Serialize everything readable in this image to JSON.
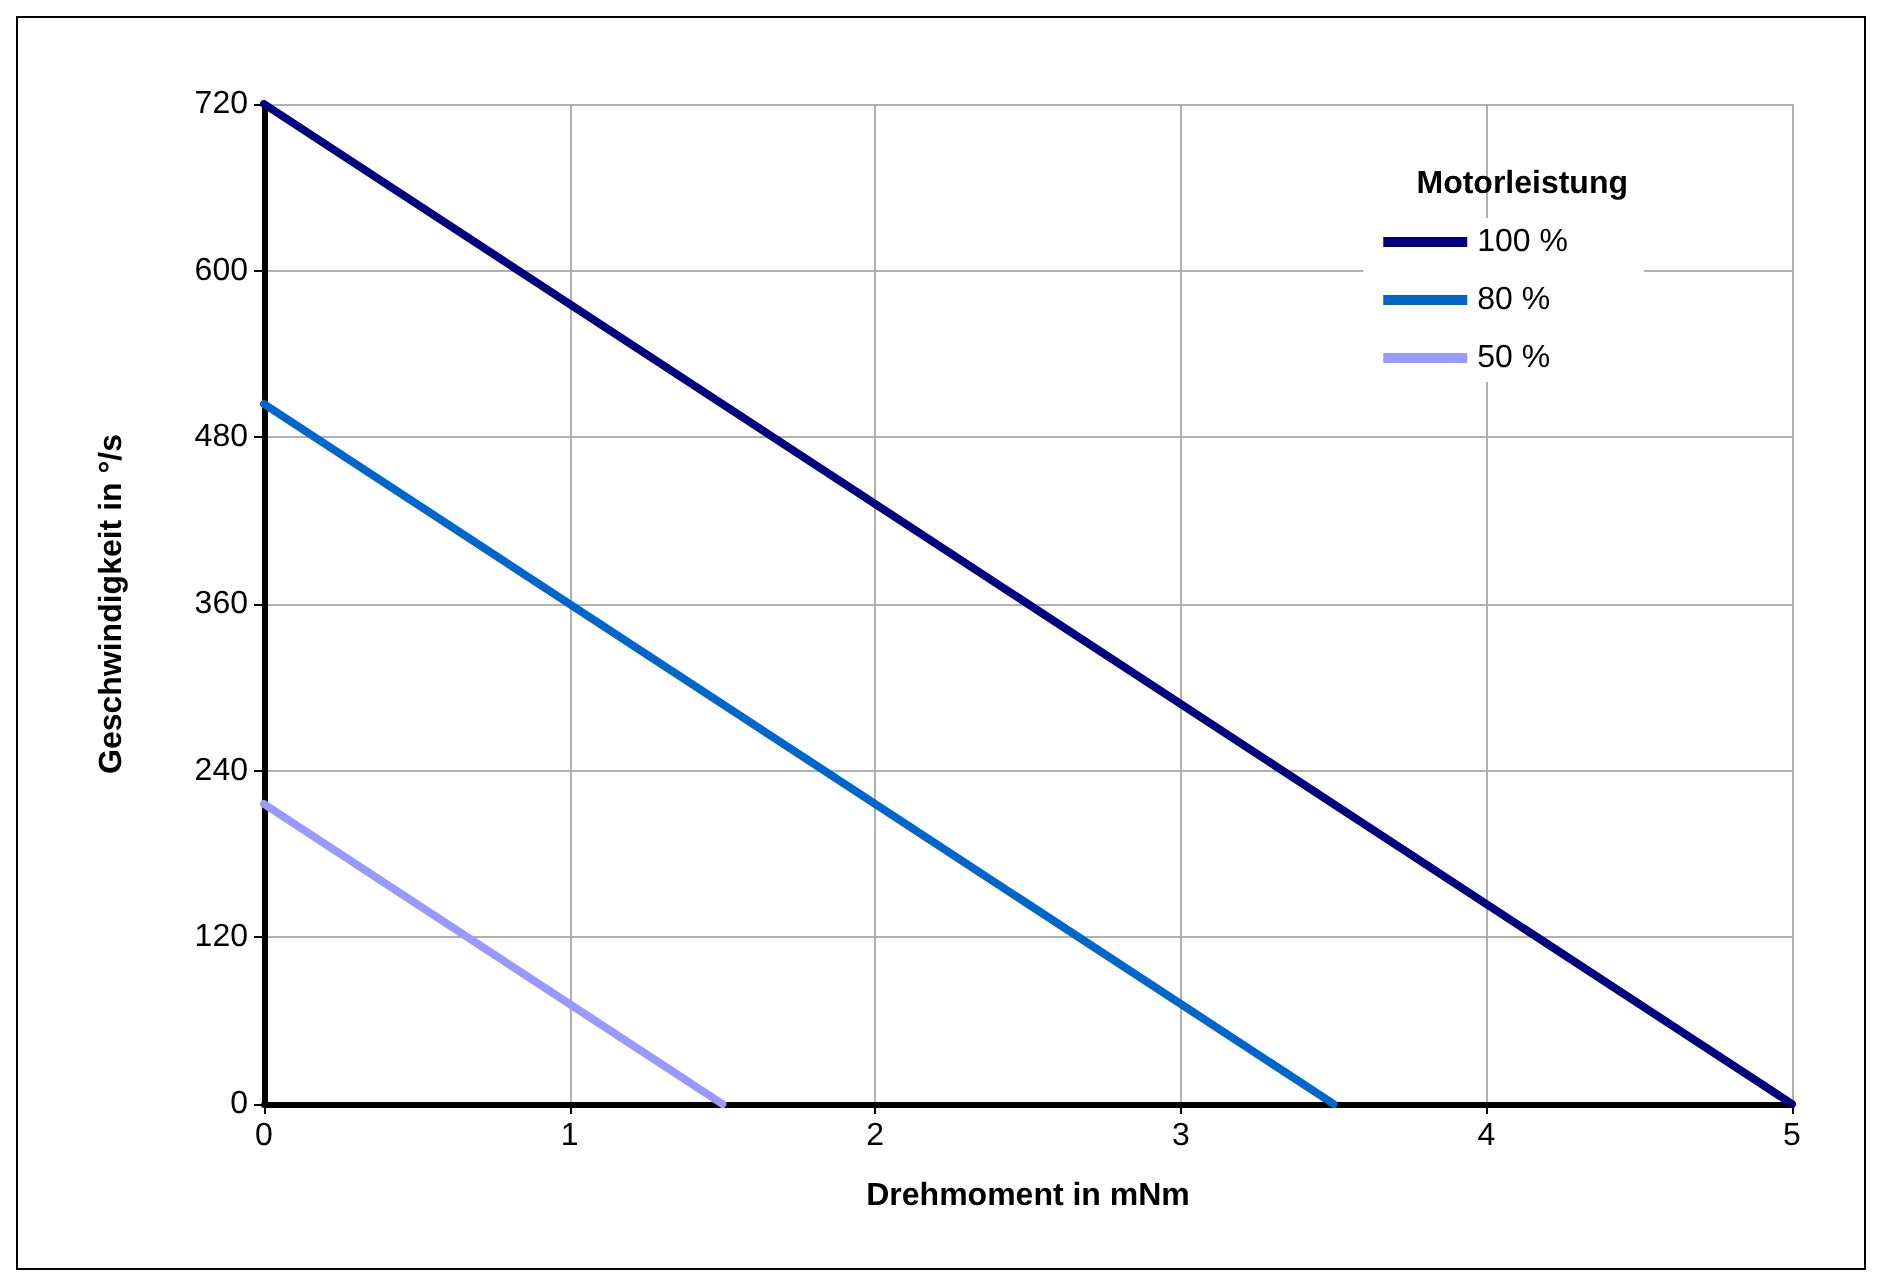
{
  "chart_data": {
    "type": "line",
    "xlabel": "Drehmoment in mNm",
    "ylabel": "Geschwindigkeit in °/s",
    "legend_title": "Motorleistung",
    "legend": "top right",
    "grid": true,
    "marker": "none",
    "line_style": "solid",
    "xlim": [
      0,
      5
    ],
    "xticks": [
      0,
      1,
      2,
      3,
      4,
      5
    ],
    "ylim": [
      0,
      720
    ],
    "yticks": [
      0,
      120,
      240,
      360,
      480,
      600,
      720
    ],
    "series": [
      {
        "name": "100 %",
        "color": "#000080",
        "x": [
          0,
          5
        ],
        "values": [
          720,
          0
        ]
      },
      {
        "name": "80 %",
        "color": "#0066cc",
        "x": [
          0,
          3.5
        ],
        "values": [
          504,
          0
        ]
      },
      {
        "name": "50 %",
        "color": "#9999ff",
        "x": [
          0,
          1.5
        ],
        "values": [
          216,
          0
        ]
      }
    ]
  }
}
